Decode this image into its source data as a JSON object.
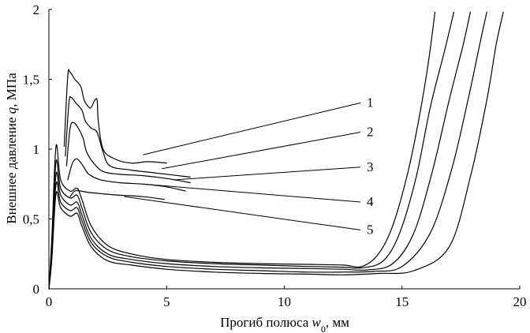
{
  "chart_data": {
    "type": "line",
    "xlabel": {
      "main": "Прогиб полюса ",
      "var": "w",
      "sub": "0",
      "unit": ", мм"
    },
    "ylabel": {
      "main": "Внешнее давление ",
      "var": "q",
      "unit": ", МПа"
    },
    "xlim": [
      0,
      20
    ],
    "ylim": [
      0,
      2
    ],
    "x_ticks": [
      "0",
      "5",
      "10",
      "15",
      "20"
    ],
    "y_ticks": [
      "0",
      "0,5",
      "1",
      "1,5",
      "2"
    ],
    "grid": false,
    "series": [
      {
        "name": "1",
        "low_branch": [
          [
            0,
            0
          ],
          [
            0.12,
            0.35
          ],
          [
            0.3,
            1.02
          ],
          [
            0.5,
            0.78
          ],
          [
            0.9,
            0.7
          ],
          [
            1.2,
            0.72
          ],
          [
            1.4,
            0.64
          ],
          [
            1.8,
            0.45
          ],
          [
            2.5,
            0.31
          ],
          [
            3.5,
            0.25
          ],
          [
            5,
            0.21
          ],
          [
            7,
            0.19
          ],
          [
            9,
            0.18
          ],
          [
            11,
            0.175
          ],
          [
            12.5,
            0.17
          ],
          [
            13.3,
            0.16
          ],
          [
            14,
            0.25
          ],
          [
            14.6,
            0.45
          ],
          [
            15.2,
            0.8
          ],
          [
            15.7,
            1.2
          ],
          [
            16.1,
            1.6
          ],
          [
            16.4,
            1.98
          ]
        ],
        "upper_branch": [
          [
            0.65,
            1.02
          ],
          [
            0.8,
            1.52
          ],
          [
            0.9,
            1.55
          ],
          [
            1.1,
            1.5
          ],
          [
            1.35,
            1.45
          ],
          [
            1.5,
            1.35
          ],
          [
            1.7,
            1.3
          ],
          [
            1.8,
            1.3
          ],
          [
            1.95,
            1.35
          ],
          [
            2.05,
            1.35
          ],
          [
            2.1,
            1.2
          ],
          [
            2.3,
            1.0
          ],
          [
            2.8,
            0.93
          ],
          [
            3.5,
            0.9
          ],
          [
            4.2,
            0.91
          ],
          [
            5,
            0.9
          ]
        ]
      },
      {
        "name": "2",
        "low_branch": [
          [
            0,
            0
          ],
          [
            0.12,
            0.3
          ],
          [
            0.3,
            0.91
          ],
          [
            0.5,
            0.72
          ],
          [
            0.9,
            0.65
          ],
          [
            1.2,
            0.67
          ],
          [
            1.4,
            0.58
          ],
          [
            1.8,
            0.4
          ],
          [
            2.5,
            0.28
          ],
          [
            3.5,
            0.23
          ],
          [
            5,
            0.2
          ],
          [
            7,
            0.18
          ],
          [
            9,
            0.17
          ],
          [
            11,
            0.16
          ],
          [
            12.5,
            0.155
          ],
          [
            13.3,
            0.15
          ],
          [
            14.2,
            0.2
          ],
          [
            14.9,
            0.4
          ],
          [
            15.6,
            0.8
          ],
          [
            16.2,
            1.3
          ],
          [
            16.8,
            1.7
          ],
          [
            17.2,
            1.98
          ]
        ],
        "upper_branch": [
          [
            0.7,
            0.95
          ],
          [
            0.85,
            1.33
          ],
          [
            0.95,
            1.37
          ],
          [
            1.15,
            1.33
          ],
          [
            1.4,
            1.28
          ],
          [
            1.55,
            1.2
          ],
          [
            1.8,
            1.15
          ],
          [
            2.05,
            1.12
          ],
          [
            2.3,
            0.98
          ],
          [
            2.6,
            0.88
          ],
          [
            3.5,
            0.85
          ],
          [
            4.5,
            0.83
          ],
          [
            6,
            0.8
          ]
        ]
      },
      {
        "name": "3",
        "low_branch": [
          [
            0,
            0
          ],
          [
            0.12,
            0.26
          ],
          [
            0.3,
            0.82
          ],
          [
            0.5,
            0.67
          ],
          [
            0.9,
            0.6
          ],
          [
            1.2,
            0.62
          ],
          [
            1.4,
            0.53
          ],
          [
            1.8,
            0.36
          ],
          [
            2.5,
            0.25
          ],
          [
            3.5,
            0.21
          ],
          [
            5,
            0.18
          ],
          [
            7,
            0.16
          ],
          [
            9,
            0.15
          ],
          [
            11,
            0.145
          ],
          [
            12.5,
            0.14
          ],
          [
            13.5,
            0.135
          ],
          [
            14.6,
            0.18
          ],
          [
            15.5,
            0.4
          ],
          [
            16.3,
            0.85
          ],
          [
            17,
            1.35
          ],
          [
            17.6,
            1.75
          ],
          [
            17.9,
            1.98
          ]
        ],
        "upper_branch": [
          [
            0.75,
            0.88
          ],
          [
            0.9,
            1.15
          ],
          [
            1.05,
            1.19
          ],
          [
            1.25,
            1.15
          ],
          [
            1.45,
            1.08
          ],
          [
            1.6,
            0.98
          ],
          [
            1.9,
            0.9
          ],
          [
            2.3,
            0.84
          ],
          [
            3,
            0.82
          ],
          [
            4,
            0.81
          ],
          [
            5,
            0.79
          ],
          [
            6,
            0.76
          ]
        ]
      },
      {
        "name": "4",
        "low_branch": [
          [
            0,
            0
          ],
          [
            0.12,
            0.22
          ],
          [
            0.3,
            0.75
          ],
          [
            0.5,
            0.62
          ],
          [
            0.9,
            0.56
          ],
          [
            1.2,
            0.58
          ],
          [
            1.4,
            0.49
          ],
          [
            1.8,
            0.33
          ],
          [
            2.5,
            0.23
          ],
          [
            3.5,
            0.19
          ],
          [
            5,
            0.16
          ],
          [
            7,
            0.14
          ],
          [
            9,
            0.13
          ],
          [
            11,
            0.12
          ],
          [
            12.5,
            0.12
          ],
          [
            13.8,
            0.125
          ],
          [
            15,
            0.16
          ],
          [
            16.2,
            0.4
          ],
          [
            17.1,
            0.85
          ],
          [
            17.8,
            1.35
          ],
          [
            18.3,
            1.75
          ],
          [
            18.6,
            1.98
          ]
        ],
        "upper_branch": [
          [
            0.8,
            0.78
          ],
          [
            1.0,
            0.9
          ],
          [
            1.2,
            0.93
          ],
          [
            1.45,
            0.88
          ],
          [
            1.7,
            0.82
          ],
          [
            2.2,
            0.78
          ],
          [
            3,
            0.76
          ],
          [
            4,
            0.75
          ],
          [
            5,
            0.73
          ],
          [
            5.8,
            0.7
          ]
        ]
      },
      {
        "name": "5",
        "low_branch": [
          [
            0,
            0
          ],
          [
            0.12,
            0.2
          ],
          [
            0.3,
            0.68
          ],
          [
            0.5,
            0.58
          ],
          [
            0.9,
            0.52
          ],
          [
            1.2,
            0.54
          ],
          [
            1.4,
            0.45
          ],
          [
            1.8,
            0.3
          ],
          [
            2.5,
            0.2
          ],
          [
            3.5,
            0.17
          ],
          [
            5,
            0.14
          ],
          [
            7,
            0.12
          ],
          [
            9,
            0.11
          ],
          [
            11,
            0.105
          ],
          [
            12.5,
            0.1
          ],
          [
            14,
            0.11
          ],
          [
            15.5,
            0.13
          ],
          [
            17,
            0.3
          ],
          [
            17.9,
            0.8
          ],
          [
            18.6,
            1.35
          ],
          [
            19,
            1.75
          ],
          [
            19.3,
            1.98
          ]
        ],
        "upper_branch": [
          [
            0.9,
            0.66
          ],
          [
            1.1,
            0.7
          ],
          [
            1.35,
            0.7
          ],
          [
            1.7,
            0.69
          ],
          [
            2.3,
            0.68
          ],
          [
            3,
            0.67
          ],
          [
            4,
            0.66
          ],
          [
            4.9,
            0.64
          ]
        ]
      }
    ],
    "annotations": [
      {
        "label": "1",
        "anchor": [
          4.0,
          0.96
        ],
        "text_at": [
          13.5,
          1.32
        ]
      },
      {
        "label": "2",
        "anchor": [
          4.8,
          0.86
        ],
        "text_at": [
          13.5,
          1.11
        ]
      },
      {
        "label": "3",
        "anchor": [
          5.3,
          0.78
        ],
        "text_at": [
          13.5,
          0.86
        ]
      },
      {
        "label": "4",
        "anchor": [
          4.0,
          0.75
        ],
        "text_at": [
          13.5,
          0.61
        ]
      },
      {
        "label": "5",
        "anchor": [
          3.2,
          0.66
        ],
        "text_at": [
          13.5,
          0.41
        ]
      }
    ]
  }
}
